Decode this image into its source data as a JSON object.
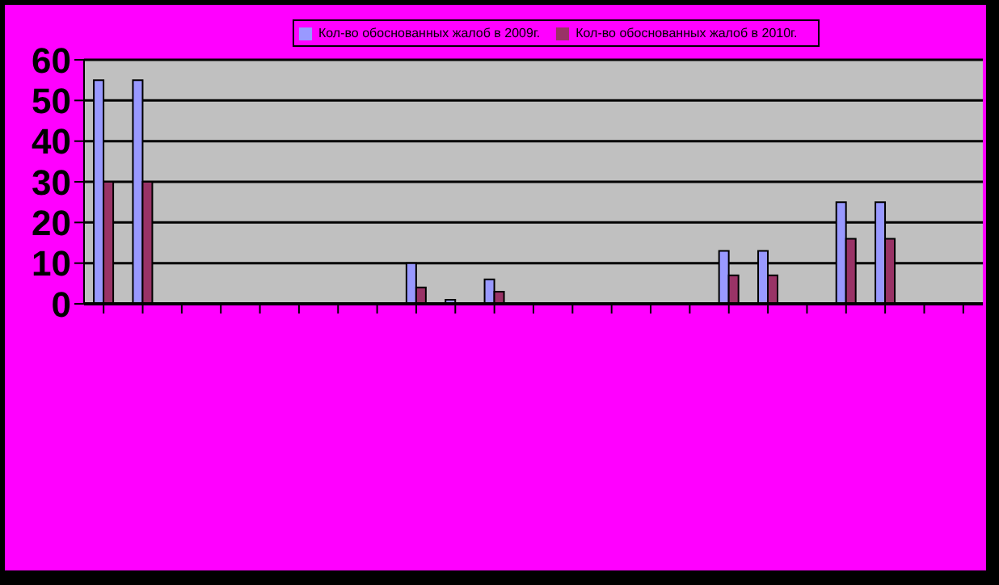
{
  "chart_data": {
    "type": "bar",
    "categories": [
      null,
      null,
      null,
      null,
      null,
      null,
      null,
      null,
      null,
      null,
      null,
      null,
      null,
      null,
      null,
      null,
      null,
      null,
      null,
      null,
      null,
      null,
      null
    ],
    "series": [
      {
        "name": "Кол-во обоснованных жалоб в 2009г.",
        "color": "#9999ff",
        "values": [
          55,
          55,
          0,
          0,
          0,
          0,
          0,
          0,
          10,
          1,
          6,
          0,
          0,
          0,
          0,
          0,
          13,
          13,
          0,
          25,
          25,
          0,
          0
        ]
      },
      {
        "name": "Кол-во обоснованных жалоб в 2010г.",
        "color": "#993366",
        "values": [
          30,
          30,
          0,
          0,
          0,
          0,
          0,
          0,
          4,
          0,
          3,
          0,
          0,
          0,
          0,
          0,
          7,
          7,
          0,
          16,
          16,
          0,
          0
        ]
      }
    ],
    "ylim": [
      0,
      60
    ],
    "yticks": [
      0,
      10,
      20,
      30,
      40,
      50,
      60
    ],
    "grid": "y",
    "legend": "top"
  }
}
